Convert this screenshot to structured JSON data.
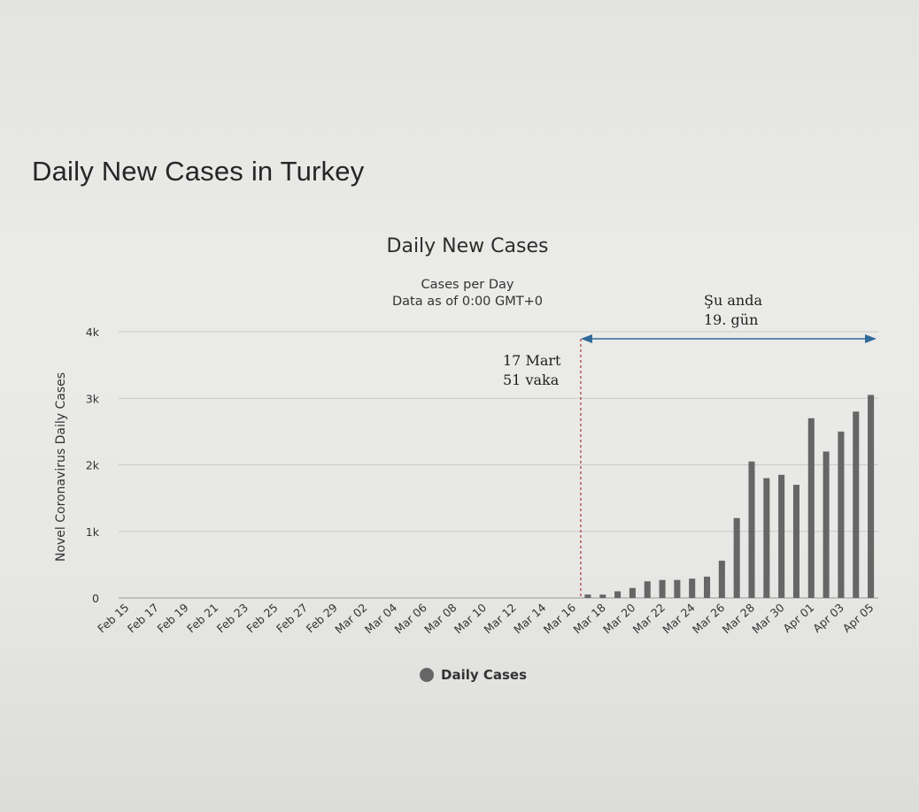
{
  "page": {
    "heading": "Daily New Cases in Turkey"
  },
  "chart_data": {
    "type": "bar",
    "title": "Daily New Cases",
    "subtitle_lines": [
      "Cases per Day",
      "Data as of 0:00 GMT+0"
    ],
    "xlabel": "",
    "ylabel": "Novel Coronavirus Daily Cases",
    "ylim": [
      0,
      4000
    ],
    "y_ticks": [
      {
        "value": 0,
        "label": "0"
      },
      {
        "value": 1000,
        "label": "1k"
      },
      {
        "value": 2000,
        "label": "2k"
      },
      {
        "value": 3000,
        "label": "3k"
      },
      {
        "value": 4000,
        "label": "4k"
      }
    ],
    "grid": true,
    "categories": [
      "Feb 15",
      "Feb 16",
      "Feb 17",
      "Feb 18",
      "Feb 19",
      "Feb 20",
      "Feb 21",
      "Feb 22",
      "Feb 23",
      "Feb 24",
      "Feb 25",
      "Feb 26",
      "Feb 27",
      "Feb 28",
      "Feb 29",
      "Mar 01",
      "Mar 02",
      "Mar 03",
      "Mar 04",
      "Mar 05",
      "Mar 06",
      "Mar 07",
      "Mar 08",
      "Mar 09",
      "Mar 10",
      "Mar 11",
      "Mar 12",
      "Mar 13",
      "Mar 14",
      "Mar 15",
      "Mar 16",
      "Mar 17",
      "Mar 18",
      "Mar 19",
      "Mar 20",
      "Mar 21",
      "Mar 22",
      "Mar 23",
      "Mar 24",
      "Mar 25",
      "Mar 26",
      "Mar 27",
      "Mar 28",
      "Mar 29",
      "Mar 30",
      "Mar 31",
      "Apr 01",
      "Apr 02",
      "Apr 03",
      "Apr 04",
      "Apr 05"
    ],
    "x_tick_labels": [
      "Feb 15",
      "Feb 17",
      "Feb 19",
      "Feb 21",
      "Feb 23",
      "Feb 25",
      "Feb 27",
      "Feb 29",
      "Mar 02",
      "Mar 04",
      "Mar 06",
      "Mar 08",
      "Mar 10",
      "Mar 12",
      "Mar 14",
      "Mar 16",
      "Mar 18",
      "Mar 20",
      "Mar 22",
      "Mar 24",
      "Mar 26",
      "Mar 28",
      "Mar 30",
      "Apr 01",
      "Apr 03",
      "Apr 05"
    ],
    "series": [
      {
        "name": "Daily Cases",
        "color": "#666666",
        "values": [
          0,
          0,
          0,
          0,
          0,
          0,
          0,
          0,
          0,
          0,
          0,
          0,
          0,
          0,
          0,
          0,
          0,
          0,
          0,
          0,
          0,
          0,
          0,
          0,
          0,
          0,
          0,
          0,
          0,
          0,
          0,
          51,
          50,
          100,
          150,
          250,
          270,
          270,
          290,
          320,
          560,
          1200,
          2050,
          1800,
          1850,
          1700,
          2700,
          2200,
          2500,
          2800,
          3050
        ]
      }
    ],
    "legend": {
      "label": "Daily Cases",
      "placement": "bottom"
    },
    "annotations": {
      "start_lines": [
        "17 Mart",
        "51 vaka"
      ],
      "current_lines": [
        "Şu anda",
        "19. gün"
      ]
    },
    "colors": {
      "bar": "#666666",
      "gridline": "#c9c9c7",
      "marker_line": "#b04040",
      "arrow": "#2f6a9a"
    }
  }
}
